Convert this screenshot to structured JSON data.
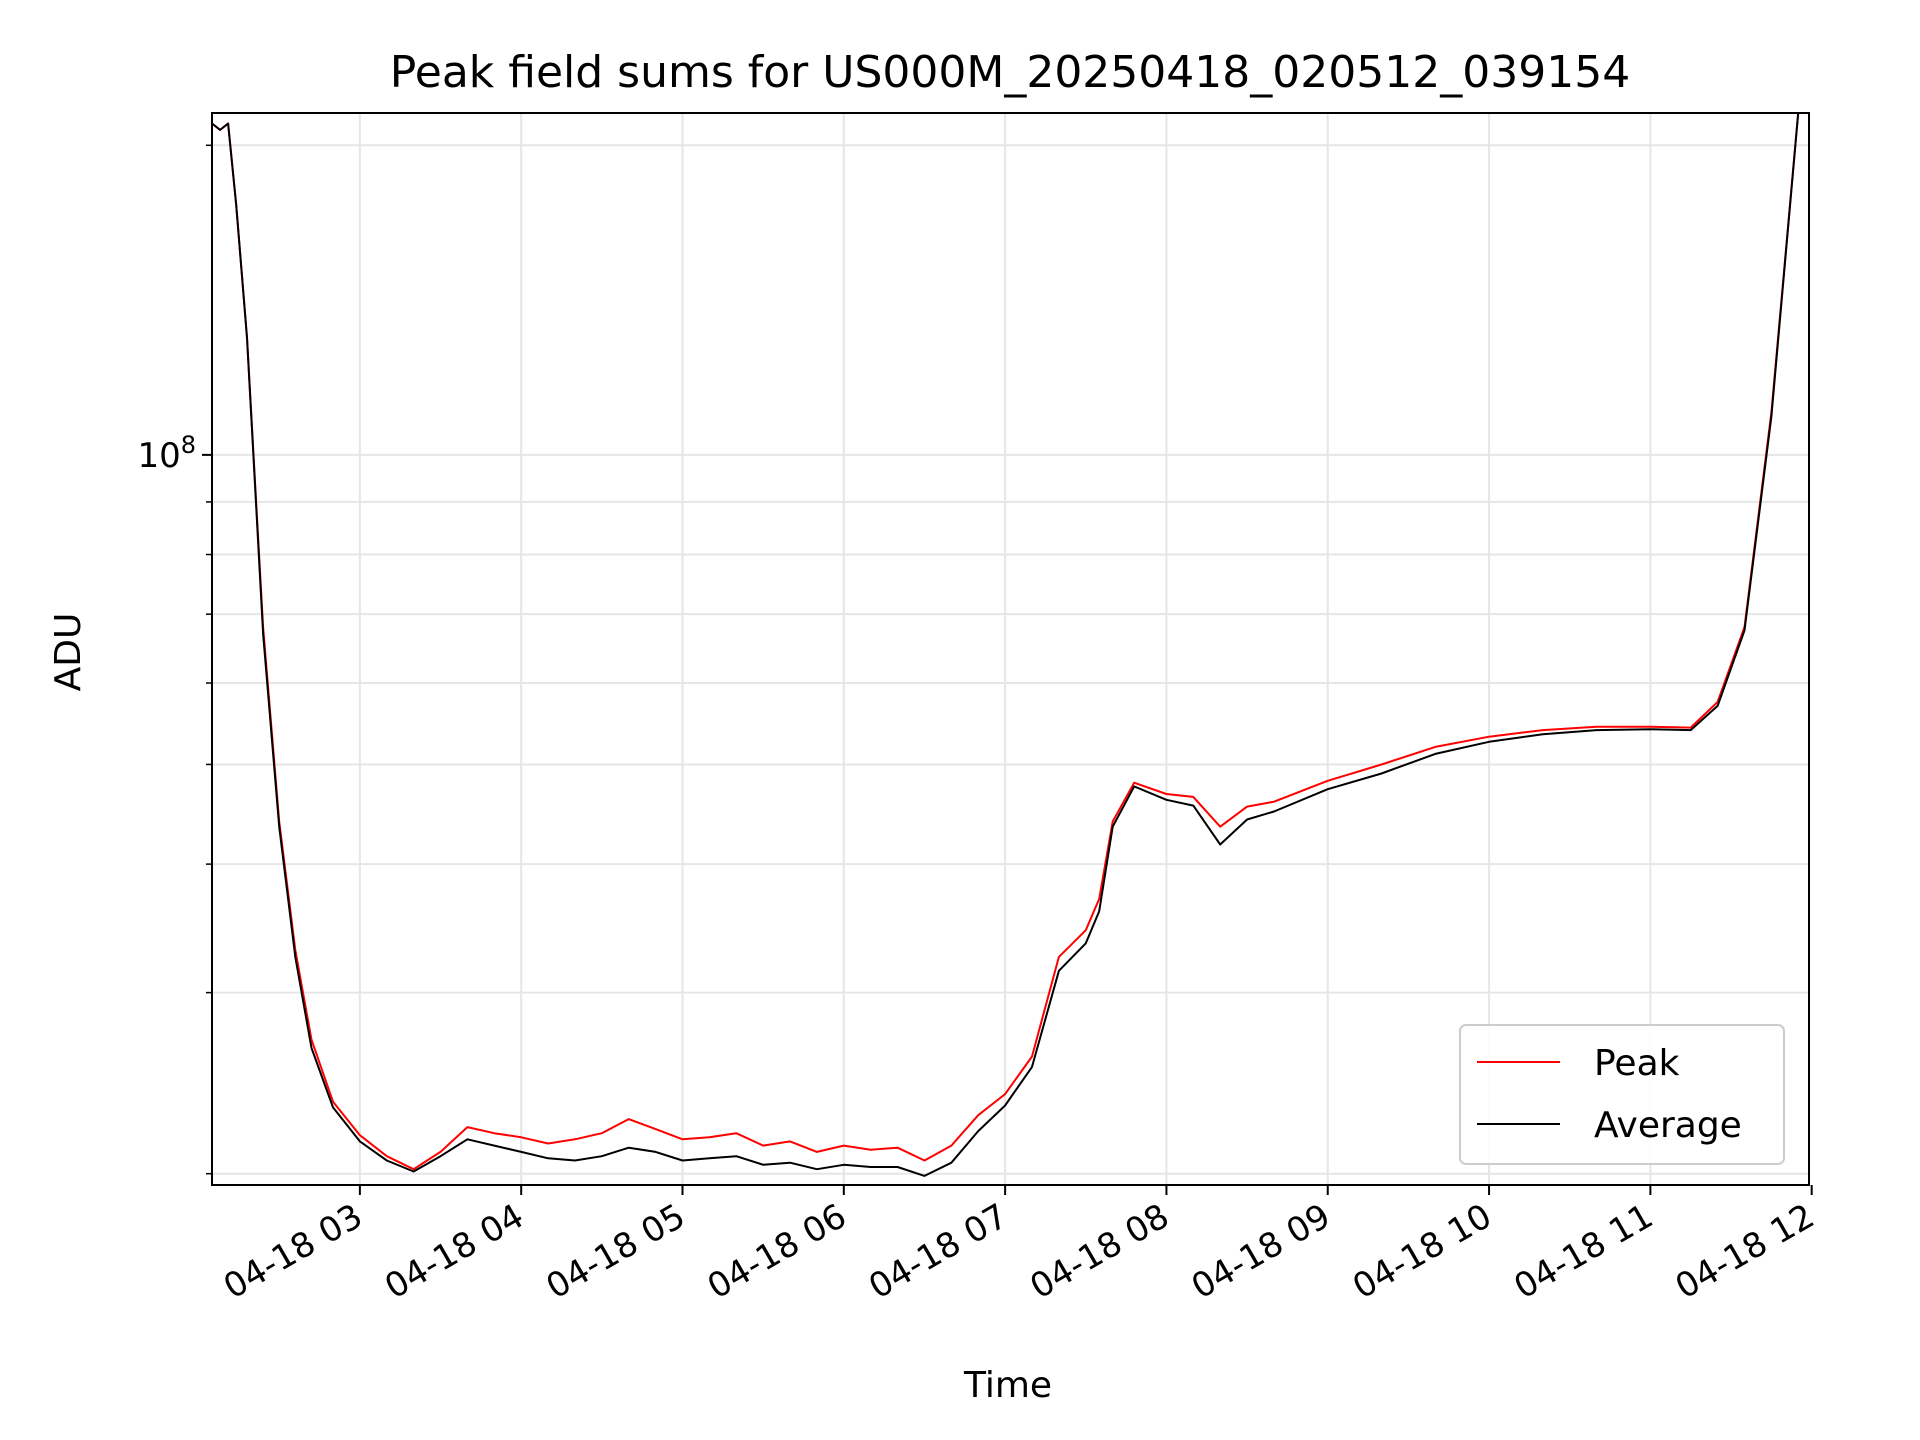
{
  "chart_data": {
    "type": "line",
    "title": "Peak field sums for US000M_20250418_020512_039154",
    "xlabel": "Time",
    "ylabel": "ADU",
    "y_scale": "log",
    "ylim": [
      19500000,
      215000000
    ],
    "xlim": [
      "2025-04-18 02:05",
      "2025-04-18 11:59"
    ],
    "x_ticks": [
      {
        "t": "2025-04-18 03:00",
        "label": "04-18 03"
      },
      {
        "t": "2025-04-18 04:00",
        "label": "04-18 04"
      },
      {
        "t": "2025-04-18 05:00",
        "label": "04-18 05"
      },
      {
        "t": "2025-04-18 06:00",
        "label": "04-18 06"
      },
      {
        "t": "2025-04-18 07:00",
        "label": "04-18 07"
      },
      {
        "t": "2025-04-18 08:00",
        "label": "04-18 08"
      },
      {
        "t": "2025-04-18 09:00",
        "label": "04-18 09"
      },
      {
        "t": "2025-04-18 10:00",
        "label": "04-18 10"
      },
      {
        "t": "2025-04-18 11:00",
        "label": "04-18 11"
      },
      {
        "t": "2025-04-18 12:00",
        "label": "04-18 12"
      }
    ],
    "y_major_ticks": [
      {
        "value": 100000000,
        "label": "10^8"
      }
    ],
    "y_minor_ticks": [
      20000000,
      30000000,
      40000000,
      50000000,
      60000000,
      70000000,
      80000000,
      90000000,
      200000000
    ],
    "grid": true,
    "legend_position": "lower-right",
    "series": [
      {
        "name": "Peak",
        "color": "#ff0000",
        "points": [
          [
            "2025-04-18 02:05",
            210000000
          ],
          [
            "2025-04-18 02:08",
            207000000
          ],
          [
            "2025-04-18 02:11",
            210000000
          ],
          [
            "2025-04-18 02:14",
            175000000
          ],
          [
            "2025-04-18 02:18",
            130000000
          ],
          [
            "2025-04-18 02:24",
            68000000
          ],
          [
            "2025-04-18 02:30",
            44000000
          ],
          [
            "2025-04-18 02:36",
            33000000
          ],
          [
            "2025-04-18 02:42",
            27000000
          ],
          [
            "2025-04-18 02:50",
            23500000
          ],
          [
            "2025-04-18 03:00",
            21800000
          ],
          [
            "2025-04-18 03:10",
            20800000
          ],
          [
            "2025-04-18 03:20",
            20200000
          ],
          [
            "2025-04-18 03:30",
            21000000
          ],
          [
            "2025-04-18 03:40",
            22200000
          ],
          [
            "2025-04-18 03:50",
            21900000
          ],
          [
            "2025-04-18 04:00",
            21700000
          ],
          [
            "2025-04-18 04:10",
            21400000
          ],
          [
            "2025-04-18 04:20",
            21600000
          ],
          [
            "2025-04-18 04:30",
            21900000
          ],
          [
            "2025-04-18 04:40",
            22600000
          ],
          [
            "2025-04-18 04:50",
            22100000
          ],
          [
            "2025-04-18 05:00",
            21600000
          ],
          [
            "2025-04-18 05:10",
            21700000
          ],
          [
            "2025-04-18 05:20",
            21900000
          ],
          [
            "2025-04-18 05:30",
            21300000
          ],
          [
            "2025-04-18 05:40",
            21500000
          ],
          [
            "2025-04-18 05:50",
            21000000
          ],
          [
            "2025-04-18 06:00",
            21300000
          ],
          [
            "2025-04-18 06:10",
            21100000
          ],
          [
            "2025-04-18 06:20",
            21200000
          ],
          [
            "2025-04-18 06:30",
            20600000
          ],
          [
            "2025-04-18 06:40",
            21300000
          ],
          [
            "2025-04-18 06:50",
            22800000
          ],
          [
            "2025-04-18 07:00",
            23900000
          ],
          [
            "2025-04-18 07:10",
            26000000
          ],
          [
            "2025-04-18 07:20",
            32500000
          ],
          [
            "2025-04-18 07:30",
            34500000
          ],
          [
            "2025-04-18 07:35",
            37000000
          ],
          [
            "2025-04-18 07:40",
            44000000
          ],
          [
            "2025-04-18 07:48",
            48000000
          ],
          [
            "2025-04-18 08:00",
            46800000
          ],
          [
            "2025-04-18 08:10",
            46500000
          ],
          [
            "2025-04-18 08:20",
            43500000
          ],
          [
            "2025-04-18 08:30",
            45500000
          ],
          [
            "2025-04-18 08:40",
            46000000
          ],
          [
            "2025-04-18 09:00",
            48200000
          ],
          [
            "2025-04-18 09:20",
            50000000
          ],
          [
            "2025-04-18 09:40",
            52000000
          ],
          [
            "2025-04-18 10:00",
            53200000
          ],
          [
            "2025-04-18 10:20",
            54000000
          ],
          [
            "2025-04-18 10:40",
            54400000
          ],
          [
            "2025-04-18 11:00",
            54400000
          ],
          [
            "2025-04-18 11:15",
            54300000
          ],
          [
            "2025-04-18 11:25",
            57500000
          ],
          [
            "2025-04-18 11:35",
            68000000
          ],
          [
            "2025-04-18 11:45",
            110000000
          ],
          [
            "2025-04-18 11:55",
            215000000
          ]
        ]
      },
      {
        "name": "Average",
        "color": "#000000",
        "points": [
          [
            "2025-04-18 02:05",
            210000000
          ],
          [
            "2025-04-18 02:08",
            207000000
          ],
          [
            "2025-04-18 02:11",
            210000000
          ],
          [
            "2025-04-18 02:14",
            175000000
          ],
          [
            "2025-04-18 02:18",
            130000000
          ],
          [
            "2025-04-18 02:24",
            67000000
          ],
          [
            "2025-04-18 02:30",
            43500000
          ],
          [
            "2025-04-18 02:36",
            32500000
          ],
          [
            "2025-04-18 02:42",
            26500000
          ],
          [
            "2025-04-18 02:50",
            23200000
          ],
          [
            "2025-04-18 03:00",
            21500000
          ],
          [
            "2025-04-18 03:10",
            20600000
          ],
          [
            "2025-04-18 03:20",
            20100000
          ],
          [
            "2025-04-18 03:30",
            20800000
          ],
          [
            "2025-04-18 03:40",
            21600000
          ],
          [
            "2025-04-18 03:50",
            21300000
          ],
          [
            "2025-04-18 04:00",
            21000000
          ],
          [
            "2025-04-18 04:10",
            20700000
          ],
          [
            "2025-04-18 04:20",
            20600000
          ],
          [
            "2025-04-18 04:30",
            20800000
          ],
          [
            "2025-04-18 04:40",
            21200000
          ],
          [
            "2025-04-18 04:50",
            21000000
          ],
          [
            "2025-04-18 05:00",
            20600000
          ],
          [
            "2025-04-18 05:10",
            20700000
          ],
          [
            "2025-04-18 05:20",
            20800000
          ],
          [
            "2025-04-18 05:30",
            20400000
          ],
          [
            "2025-04-18 05:40",
            20500000
          ],
          [
            "2025-04-18 05:50",
            20200000
          ],
          [
            "2025-04-18 06:00",
            20400000
          ],
          [
            "2025-04-18 06:10",
            20300000
          ],
          [
            "2025-04-18 06:20",
            20300000
          ],
          [
            "2025-04-18 06:30",
            19900000
          ],
          [
            "2025-04-18 06:40",
            20500000
          ],
          [
            "2025-04-18 06:50",
            22000000
          ],
          [
            "2025-04-18 07:00",
            23300000
          ],
          [
            "2025-04-18 07:10",
            25400000
          ],
          [
            "2025-04-18 07:20",
            31500000
          ],
          [
            "2025-04-18 07:30",
            33500000
          ],
          [
            "2025-04-18 07:35",
            36000000
          ],
          [
            "2025-04-18 07:40",
            43500000
          ],
          [
            "2025-04-18 07:48",
            47600000
          ],
          [
            "2025-04-18 08:00",
            46200000
          ],
          [
            "2025-04-18 08:10",
            45600000
          ],
          [
            "2025-04-18 08:20",
            41800000
          ],
          [
            "2025-04-18 08:30",
            44200000
          ],
          [
            "2025-04-18 08:40",
            45000000
          ],
          [
            "2025-04-18 09:00",
            47300000
          ],
          [
            "2025-04-18 09:20",
            49000000
          ],
          [
            "2025-04-18 09:40",
            51200000
          ],
          [
            "2025-04-18 10:00",
            52600000
          ],
          [
            "2025-04-18 10:20",
            53500000
          ],
          [
            "2025-04-18 10:40",
            54000000
          ],
          [
            "2025-04-18 11:00",
            54100000
          ],
          [
            "2025-04-18 11:15",
            54000000
          ],
          [
            "2025-04-18 11:25",
            57000000
          ],
          [
            "2025-04-18 11:35",
            67500000
          ],
          [
            "2025-04-18 11:45",
            109000000
          ],
          [
            "2025-04-18 11:55",
            215000000
          ]
        ]
      }
    ]
  }
}
